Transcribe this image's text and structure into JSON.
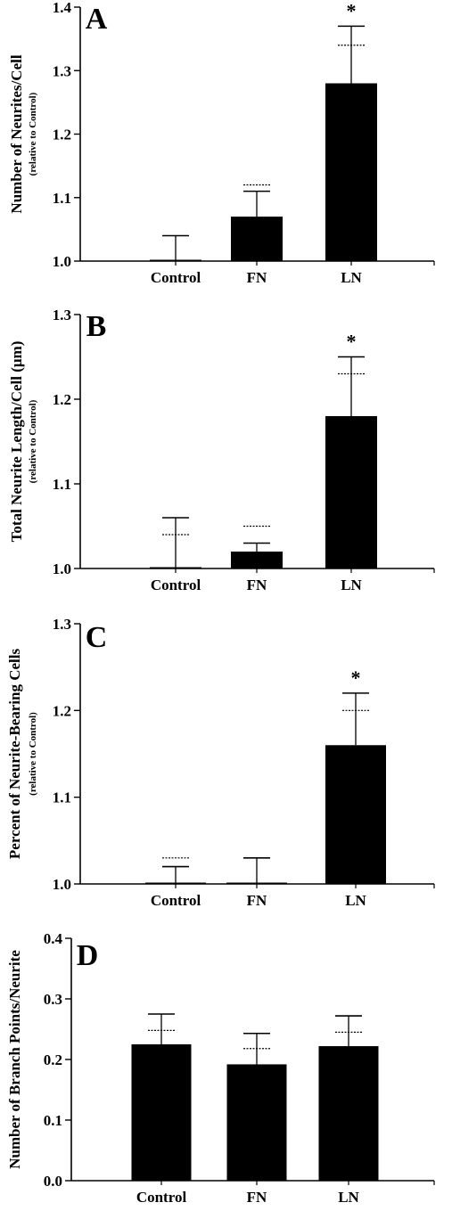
{
  "chart_data": [
    {
      "type": "bar",
      "panel": "A",
      "ylabel": "Number of Neurites/Cell",
      "ylabel_sub": "(relative to Control)",
      "ylim": [
        1.0,
        1.4
      ],
      "yticks": [
        "1.0",
        "1.1",
        "1.2",
        "1.3",
        "1.4"
      ],
      "categories": [
        "Control",
        "FN",
        "LN"
      ],
      "values": [
        1.0,
        1.07,
        1.28
      ],
      "error_upper": [
        1.04,
        1.11,
        1.37
      ],
      "error_dotted": [
        null,
        1.12,
        1.34
      ],
      "significance": [
        "",
        "",
        "*"
      ]
    },
    {
      "type": "bar",
      "panel": "B",
      "ylabel": "Total Neurite Length/Cell (μm)",
      "ylabel_sub": "(relative to Control)",
      "ylim": [
        1.0,
        1.3
      ],
      "yticks": [
        "1.0",
        "1.1",
        "1.2",
        "1.3"
      ],
      "categories": [
        "Control",
        "FN",
        "LN"
      ],
      "values": [
        1.0,
        1.02,
        1.18
      ],
      "error_upper": [
        1.06,
        1.03,
        1.25
      ],
      "error_dotted": [
        1.04,
        1.05,
        1.23
      ],
      "significance": [
        "",
        "",
        "*"
      ]
    },
    {
      "type": "bar",
      "panel": "C",
      "ylabel": "Percent of Neurite-Bearing Cells",
      "ylabel_sub": "(relative to Control)",
      "ylim": [
        1.0,
        1.3
      ],
      "yticks": [
        "1.0",
        "1.1",
        "1.2",
        "1.3"
      ],
      "categories": [
        "Control",
        "FN",
        "LN"
      ],
      "values": [
        1.0,
        1.0,
        1.16
      ],
      "error_upper": [
        1.02,
        1.03,
        1.22
      ],
      "error_dotted": [
        1.03,
        null,
        1.2
      ],
      "significance": [
        "",
        "",
        "*"
      ]
    },
    {
      "type": "bar",
      "panel": "D",
      "ylabel": "Number of Branch Points/Neurite",
      "ylabel_sub": "",
      "ylim": [
        0.0,
        0.4
      ],
      "yticks": [
        "0.0",
        "0.1",
        "0.2",
        "0.3",
        "0.4"
      ],
      "categories": [
        "Control",
        "FN",
        "LN"
      ],
      "values": [
        0.225,
        0.192,
        0.222
      ],
      "error_upper": [
        0.275,
        0.243,
        0.272
      ],
      "error_dotted": [
        0.248,
        0.218,
        0.245
      ],
      "significance": [
        "",
        "",
        ""
      ]
    }
  ]
}
